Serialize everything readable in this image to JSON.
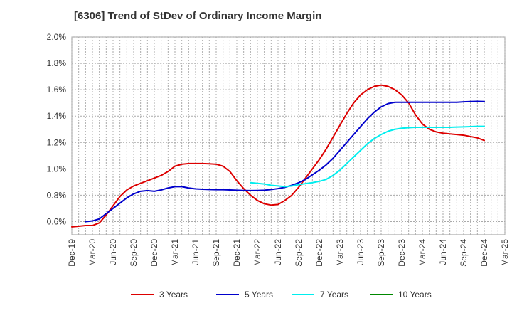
{
  "chart_data": {
    "type": "line",
    "title": "[6306]  Trend of StDev of Ordinary Income Margin",
    "xlabel": "",
    "ylabel": "",
    "x_range": [
      "2019-12",
      "2025-03"
    ],
    "x_ticks": [
      "Dec-19",
      "Mar-20",
      "Jun-20",
      "Sep-20",
      "Dec-20",
      "Mar-21",
      "Jun-21",
      "Sep-21",
      "Dec-21",
      "Mar-22",
      "Jun-22",
      "Sep-22",
      "Dec-22",
      "Mar-23",
      "Jun-23",
      "Sep-23",
      "Dec-23",
      "Mar-24",
      "Jun-24",
      "Sep-24",
      "Dec-24",
      "Mar-25"
    ],
    "ylim": [
      0.5,
      2.0
    ],
    "y_ticks": [
      0.6,
      0.8,
      1.0,
      1.2,
      1.4,
      1.6,
      1.8,
      2.0
    ],
    "y_tick_labels": [
      "0.6%",
      "0.8%",
      "1.0%",
      "1.2%",
      "1.4%",
      "1.6%",
      "1.8%",
      "2.0%"
    ],
    "grid": true,
    "legend_position": "bottom",
    "series": [
      {
        "name": "3 Years",
        "color": "#dd0000",
        "points": [
          [
            "2019-12",
            0.56
          ],
          [
            "2020-01",
            0.565
          ],
          [
            "2020-02",
            0.57
          ],
          [
            "2020-03",
            0.57
          ],
          [
            "2020-04",
            0.59
          ],
          [
            "2020-05",
            0.65
          ],
          [
            "2020-06",
            0.72
          ],
          [
            "2020-07",
            0.79
          ],
          [
            "2020-08",
            0.84
          ],
          [
            "2020-09",
            0.87
          ],
          [
            "2020-10",
            0.89
          ],
          [
            "2020-11",
            0.91
          ],
          [
            "2020-12",
            0.93
          ],
          [
            "2021-01",
            0.95
          ],
          [
            "2021-02",
            0.98
          ],
          [
            "2021-03",
            1.02
          ],
          [
            "2021-04",
            1.035
          ],
          [
            "2021-05",
            1.04
          ],
          [
            "2021-06",
            1.04
          ],
          [
            "2021-07",
            1.04
          ],
          [
            "2021-08",
            1.038
          ],
          [
            "2021-09",
            1.035
          ],
          [
            "2021-10",
            1.02
          ],
          [
            "2021-11",
            0.98
          ],
          [
            "2021-12",
            0.91
          ],
          [
            "2022-01",
            0.85
          ],
          [
            "2022-02",
            0.8
          ],
          [
            "2022-03",
            0.76
          ],
          [
            "2022-04",
            0.735
          ],
          [
            "2022-05",
            0.725
          ],
          [
            "2022-06",
            0.73
          ],
          [
            "2022-07",
            0.76
          ],
          [
            "2022-08",
            0.8
          ],
          [
            "2022-09",
            0.86
          ],
          [
            "2022-10",
            0.93
          ],
          [
            "2022-11",
            1.0
          ],
          [
            "2022-12",
            1.07
          ],
          [
            "2023-01",
            1.15
          ],
          [
            "2023-02",
            1.24
          ],
          [
            "2023-03",
            1.33
          ],
          [
            "2023-04",
            1.42
          ],
          [
            "2023-05",
            1.5
          ],
          [
            "2023-06",
            1.56
          ],
          [
            "2023-07",
            1.6
          ],
          [
            "2023-08",
            1.625
          ],
          [
            "2023-09",
            1.635
          ],
          [
            "2023-10",
            1.625
          ],
          [
            "2023-11",
            1.6
          ],
          [
            "2023-12",
            1.56
          ],
          [
            "2024-01",
            1.5
          ],
          [
            "2024-02",
            1.41
          ],
          [
            "2024-03",
            1.34
          ],
          [
            "2024-04",
            1.3
          ],
          [
            "2024-05",
            1.28
          ],
          [
            "2024-06",
            1.27
          ],
          [
            "2024-07",
            1.265
          ],
          [
            "2024-08",
            1.26
          ],
          [
            "2024-09",
            1.255
          ],
          [
            "2024-10",
            1.245
          ],
          [
            "2024-11",
            1.235
          ],
          [
            "2024-12",
            1.215
          ]
        ]
      },
      {
        "name": "5 Years",
        "color": "#0000cc",
        "points": [
          [
            "2020-02",
            0.6
          ],
          [
            "2020-03",
            0.605
          ],
          [
            "2020-04",
            0.62
          ],
          [
            "2020-05",
            0.66
          ],
          [
            "2020-06",
            0.7
          ],
          [
            "2020-07",
            0.74
          ],
          [
            "2020-08",
            0.78
          ],
          [
            "2020-09",
            0.81
          ],
          [
            "2020-10",
            0.83
          ],
          [
            "2020-11",
            0.835
          ],
          [
            "2020-12",
            0.83
          ],
          [
            "2021-01",
            0.84
          ],
          [
            "2021-02",
            0.855
          ],
          [
            "2021-03",
            0.865
          ],
          [
            "2021-04",
            0.865
          ],
          [
            "2021-05",
            0.855
          ],
          [
            "2021-06",
            0.848
          ],
          [
            "2021-07",
            0.845
          ],
          [
            "2021-08",
            0.843
          ],
          [
            "2021-09",
            0.842
          ],
          [
            "2021-10",
            0.842
          ],
          [
            "2021-11",
            0.84
          ],
          [
            "2021-12",
            0.838
          ],
          [
            "2022-01",
            0.836
          ],
          [
            "2022-02",
            0.835
          ],
          [
            "2022-03",
            0.836
          ],
          [
            "2022-04",
            0.838
          ],
          [
            "2022-05",
            0.843
          ],
          [
            "2022-06",
            0.85
          ],
          [
            "2022-07",
            0.86
          ],
          [
            "2022-08",
            0.875
          ],
          [
            "2022-09",
            0.895
          ],
          [
            "2022-10",
            0.92
          ],
          [
            "2022-11",
            0.955
          ],
          [
            "2022-12",
            0.99
          ],
          [
            "2023-01",
            1.03
          ],
          [
            "2023-02",
            1.08
          ],
          [
            "2023-03",
            1.14
          ],
          [
            "2023-04",
            1.2
          ],
          [
            "2023-05",
            1.26
          ],
          [
            "2023-06",
            1.32
          ],
          [
            "2023-07",
            1.38
          ],
          [
            "2023-08",
            1.43
          ],
          [
            "2023-09",
            1.47
          ],
          [
            "2023-10",
            1.495
          ],
          [
            "2023-11",
            1.505
          ],
          [
            "2023-12",
            1.505
          ],
          [
            "2024-01",
            1.505
          ],
          [
            "2024-02",
            1.505
          ],
          [
            "2024-03",
            1.505
          ],
          [
            "2024-04",
            1.505
          ],
          [
            "2024-05",
            1.505
          ],
          [
            "2024-06",
            1.505
          ],
          [
            "2024-07",
            1.505
          ],
          [
            "2024-08",
            1.505
          ],
          [
            "2024-09",
            1.508
          ],
          [
            "2024-10",
            1.51
          ],
          [
            "2024-11",
            1.512
          ],
          [
            "2024-12",
            1.51
          ]
        ]
      },
      {
        "name": "7 Years",
        "color": "#00eeee",
        "points": [
          [
            "2022-02",
            0.895
          ],
          [
            "2022-03",
            0.89
          ],
          [
            "2022-04",
            0.885
          ],
          [
            "2022-05",
            0.875
          ],
          [
            "2022-06",
            0.87
          ],
          [
            "2022-07",
            0.865
          ],
          [
            "2022-08",
            0.87
          ],
          [
            "2022-09",
            0.88
          ],
          [
            "2022-10",
            0.888
          ],
          [
            "2022-11",
            0.895
          ],
          [
            "2022-12",
            0.905
          ],
          [
            "2023-01",
            0.92
          ],
          [
            "2023-02",
            0.95
          ],
          [
            "2023-03",
            0.99
          ],
          [
            "2023-04",
            1.04
          ],
          [
            "2023-05",
            1.09
          ],
          [
            "2023-06",
            1.14
          ],
          [
            "2023-07",
            1.19
          ],
          [
            "2023-08",
            1.23
          ],
          [
            "2023-09",
            1.26
          ],
          [
            "2023-10",
            1.285
          ],
          [
            "2023-11",
            1.3
          ],
          [
            "2023-12",
            1.308
          ],
          [
            "2024-01",
            1.312
          ],
          [
            "2024-02",
            1.315
          ],
          [
            "2024-03",
            1.315
          ],
          [
            "2024-04",
            1.315
          ],
          [
            "2024-05",
            1.315
          ],
          [
            "2024-06",
            1.315
          ],
          [
            "2024-07",
            1.315
          ],
          [
            "2024-08",
            1.317
          ],
          [
            "2024-09",
            1.318
          ],
          [
            "2024-10",
            1.32
          ],
          [
            "2024-11",
            1.322
          ],
          [
            "2024-12",
            1.322
          ]
        ]
      },
      {
        "name": "10 Years",
        "color": "#008800",
        "points": []
      }
    ]
  }
}
